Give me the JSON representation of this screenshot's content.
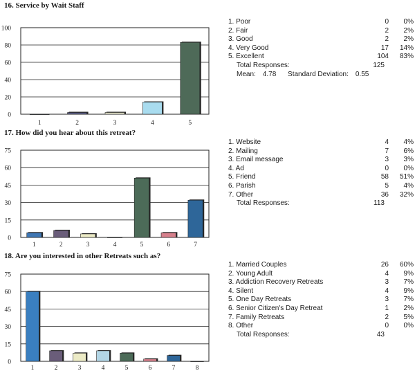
{
  "charts": [
    {
      "title": "16. Service by Wait Staff",
      "total_label": "Total Responses:",
      "total": "125",
      "mean_label": "Mean:",
      "mean": "4.78",
      "sd_label": "Standard Deviation:",
      "sd": "0.55",
      "rows": [
        {
          "label": "1. Poor",
          "count": "0",
          "pct": "0%"
        },
        {
          "label": "2. Fair",
          "count": "2",
          "pct": "2%"
        },
        {
          "label": "3. Good",
          "count": "2",
          "pct": "2%"
        },
        {
          "label": "4. Very Good",
          "count": "17",
          "pct": "14%"
        },
        {
          "label": "5. Excellent",
          "count": "104",
          "pct": "83%"
        }
      ]
    },
    {
      "title": "17. How did you hear about this retreat?",
      "total_label": "Total Responses:",
      "total": "113",
      "rows": [
        {
          "label": "1. Website",
          "count": "4",
          "pct": "4%"
        },
        {
          "label": "2. Mailing",
          "count": "7",
          "pct": "6%"
        },
        {
          "label": "3. Email message",
          "count": "3",
          "pct": "3%"
        },
        {
          "label": "4. Ad",
          "count": "0",
          "pct": "0%"
        },
        {
          "label": "5. Friend",
          "count": "58",
          "pct": "51%"
        },
        {
          "label": "6. Parish",
          "count": "5",
          "pct": "4%"
        },
        {
          "label": "7. Other",
          "count": "36",
          "pct": "32%"
        }
      ]
    },
    {
      "title": "18. Are you interested in other Retreats such as?",
      "total_label": "Total Responses:",
      "total": "43",
      "rows": [
        {
          "label": "1. Married Couples",
          "count": "26",
          "pct": "60%"
        },
        {
          "label": "2. Young Adult",
          "count": "4",
          "pct": "9%"
        },
        {
          "label": "3. Addiction Recovery Retreats",
          "count": "3",
          "pct": "7%"
        },
        {
          "label": "4. Silent",
          "count": "4",
          "pct": "9%"
        },
        {
          "label": "5. One Day Retreats",
          "count": "3",
          "pct": "7%"
        },
        {
          "label": "6. Senior Citizen's Day Retreat",
          "count": "1",
          "pct": "2%"
        },
        {
          "label": "7. Family Retreats",
          "count": "2",
          "pct": "5%"
        },
        {
          "label": "8. Other",
          "count": "0",
          "pct": "0%"
        }
      ]
    }
  ],
  "chart_data": [
    {
      "type": "bar",
      "title": "16. Service by Wait Staff",
      "categories": [
        "1",
        "2",
        "3",
        "4",
        "5"
      ],
      "values": [
        0,
        2,
        2,
        14,
        83
      ],
      "ylim": [
        0,
        100
      ],
      "yticks": [
        0,
        20,
        40,
        60,
        80,
        100
      ],
      "grid": true,
      "colors": [
        "#4a7fc0",
        "#5c5e86",
        "#e4e4ca",
        "#a9dcef",
        "#4e6a58"
      ]
    },
    {
      "type": "bar",
      "title": "17. How did you hear about this retreat?",
      "categories": [
        "1",
        "2",
        "3",
        "4",
        "5",
        "6",
        "7"
      ],
      "values": [
        4,
        6,
        3,
        0,
        51,
        4,
        32
      ],
      "ylim": [
        0,
        75
      ],
      "yticks": [
        0,
        15,
        30,
        45,
        60,
        75
      ],
      "grid": true,
      "colors": [
        "#3f77b4",
        "#6a5d7a",
        "#ecebc6",
        "#b3d6e6",
        "#4c6b58",
        "#d6808c",
        "#2e6699"
      ]
    },
    {
      "type": "bar",
      "title": "18. Are you interested in other Retreats such as?",
      "categories": [
        "1",
        "2",
        "3",
        "4",
        "5",
        "6",
        "7",
        "8"
      ],
      "values": [
        60,
        9,
        7,
        9,
        7,
        2,
        5,
        0
      ],
      "ylim": [
        0,
        75
      ],
      "yticks": [
        0,
        15,
        30,
        45,
        60,
        75
      ],
      "grid": true,
      "colors": [
        "#3a7fc0",
        "#6a5d7a",
        "#ecebc6",
        "#b3d6e6",
        "#4c6b58",
        "#d6808c",
        "#2e6699",
        "#b8b8d0"
      ]
    }
  ]
}
